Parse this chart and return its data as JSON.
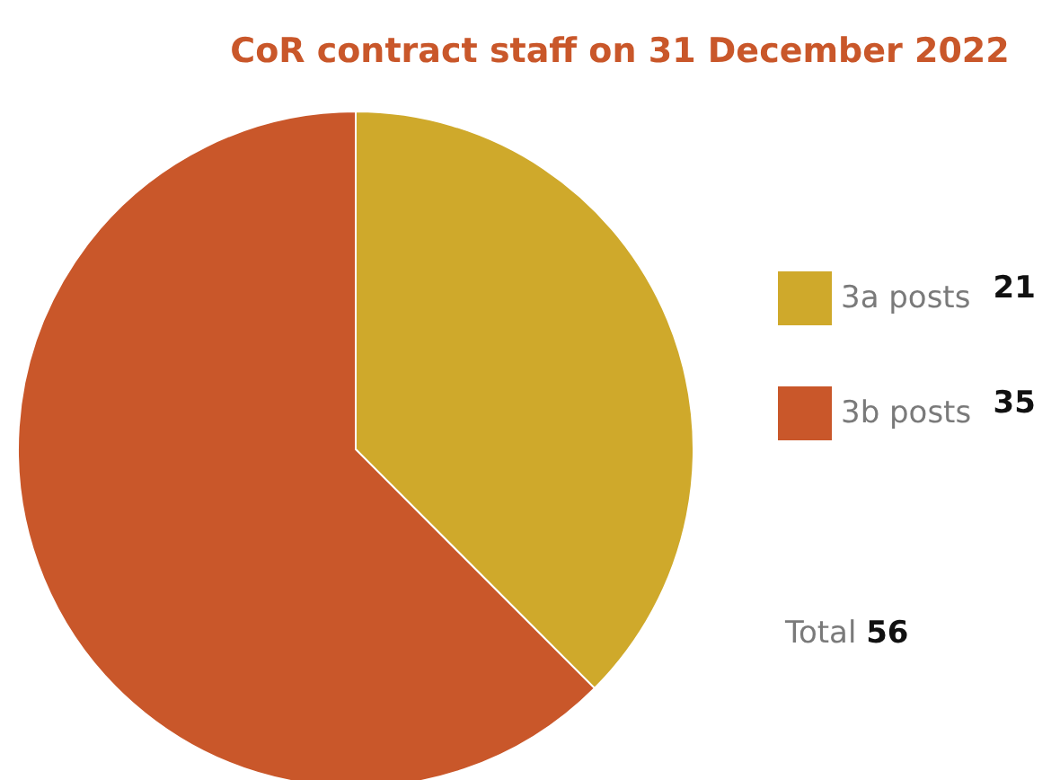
{
  "chart_data": {
    "type": "pie",
    "title": "CoR contract staff on 31 December 2022",
    "categories": [
      "3a posts",
      "3b posts"
    ],
    "values": [
      21,
      35
    ],
    "colors": [
      "#cfa92b",
      "#c9572a"
    ],
    "data_labels": true,
    "legend": "right",
    "annotations": [
      "Total 56"
    ]
  }
}
